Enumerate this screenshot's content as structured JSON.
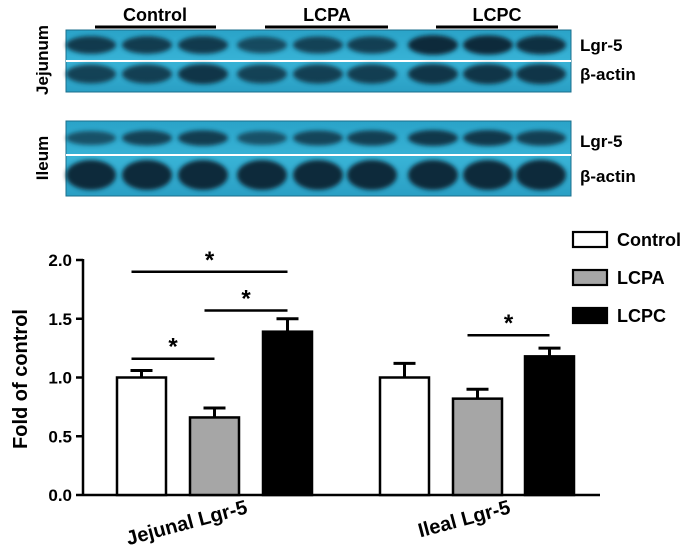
{
  "blot": {
    "groups": [
      "Control",
      "LCPA",
      "LCPC"
    ],
    "panels": [
      {
        "tissue": "Jejunum",
        "rows": [
          "Lgr-5",
          "β-actin"
        ],
        "intensity": [
          [
            0.78,
            0.76,
            0.78,
            0.62,
            0.7,
            0.72,
            1.0,
            0.95,
            0.88
          ],
          [
            0.7,
            0.72,
            0.82,
            0.7,
            0.72,
            0.74,
            0.82,
            0.82,
            0.82
          ]
        ]
      },
      {
        "tissue": "Ileum",
        "rows": [
          "Lgr-5",
          "β-actin"
        ],
        "intensity": [
          [
            0.55,
            0.7,
            0.75,
            0.55,
            0.68,
            0.72,
            0.8,
            0.8,
            0.72
          ],
          [
            0.95,
            0.95,
            0.95,
            0.95,
            0.95,
            0.95,
            0.95,
            0.95,
            0.98
          ]
        ]
      }
    ]
  },
  "chart_data": {
    "type": "bar",
    "categories": [
      "Jejunal Lgr-5",
      "Ileal Lgr-5"
    ],
    "series": [
      {
        "name": "Control",
        "values": [
          1.0,
          1.0
        ],
        "errors": [
          0.06,
          0.12
        ],
        "color": "#ffffff"
      },
      {
        "name": "LCPA",
        "values": [
          0.66,
          0.82
        ],
        "errors": [
          0.08,
          0.08
        ],
        "color": "#a6a6a6"
      },
      {
        "name": "LCPC",
        "values": [
          1.39,
          1.18
        ],
        "errors": [
          0.11,
          0.07
        ],
        "color": "#000000"
      }
    ],
    "ylabel": "Fold of control",
    "xlabel": "",
    "ylim": [
      0,
      2.0
    ],
    "yticks": [
      "0.0",
      "0.5",
      "1.0",
      "1.5",
      "2.0"
    ],
    "legend": "top-right",
    "grid": false,
    "significance": [
      {
        "category": 0,
        "from": 0,
        "to": 2,
        "y": 1.9,
        "label": "*"
      },
      {
        "category": 0,
        "from": 1,
        "to": 2,
        "y": 1.57,
        "label": "*"
      },
      {
        "category": 0,
        "from": 0,
        "to": 1,
        "y": 1.16,
        "label": "*"
      },
      {
        "category": 1,
        "from": 1,
        "to": 2,
        "y": 1.36,
        "label": "*"
      }
    ]
  }
}
